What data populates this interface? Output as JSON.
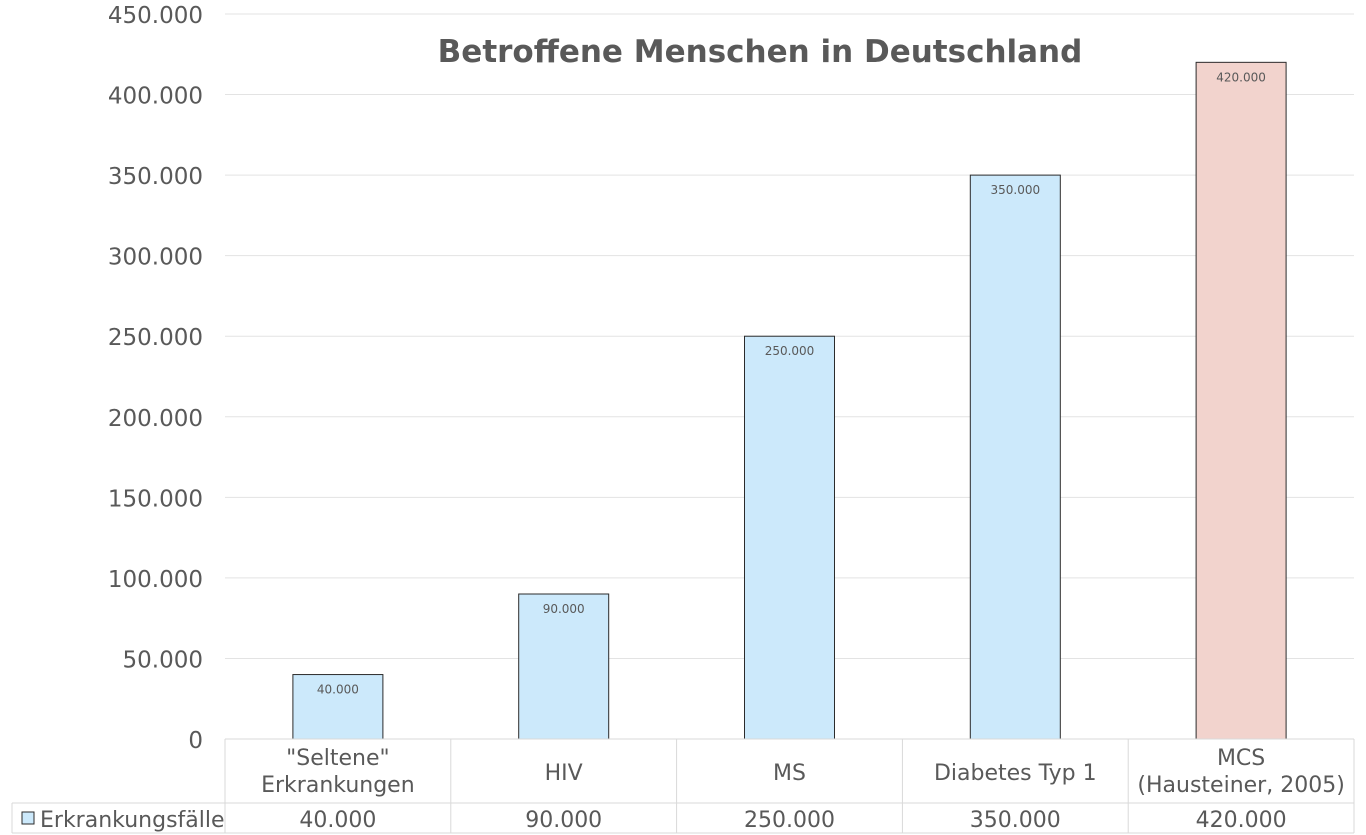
{
  "chart_data": {
    "type": "bar",
    "title": "Betroffene Menschen in Deutschland",
    "categories": [
      [
        "\"Seltene\"",
        "Erkrankungen"
      ],
      [
        "HIV"
      ],
      [
        "MS"
      ],
      [
        "Diabetes Typ 1"
      ],
      [
        "MCS",
        "(Hausteiner, 2005)"
      ]
    ],
    "series": [
      {
        "name": "Erkrankungsfälle",
        "values": [
          40000,
          90000,
          250000,
          350000,
          420000
        ],
        "value_labels": [
          "40.000",
          "90.000",
          "250.000",
          "350.000",
          "420.000"
        ]
      }
    ],
    "bar_colors": [
      "#cce9fb",
      "#cce9fb",
      "#cce9fb",
      "#cce9fb",
      "#f2d3cd"
    ],
    "ylim": [
      0,
      450000
    ],
    "yticks": [
      0,
      50000,
      100000,
      150000,
      200000,
      250000,
      300000,
      350000,
      400000,
      450000
    ],
    "ytick_labels": [
      "0",
      "50.000",
      "100.000",
      "150.000",
      "200.000",
      "250.000",
      "300.000",
      "350.000",
      "400.000",
      "450.000"
    ],
    "grid": true,
    "legend": "data-table"
  }
}
